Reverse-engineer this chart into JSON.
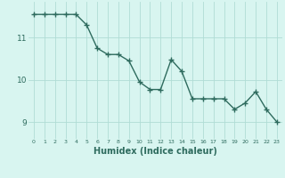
{
  "x": [
    0,
    1,
    2,
    3,
    4,
    5,
    6,
    7,
    8,
    9,
    10,
    11,
    12,
    13,
    14,
    15,
    16,
    17,
    18,
    19,
    20,
    21,
    22,
    23
  ],
  "y": [
    11.55,
    11.55,
    11.55,
    11.55,
    11.55,
    11.3,
    10.75,
    10.6,
    10.6,
    10.45,
    9.95,
    9.77,
    9.77,
    10.48,
    10.2,
    9.55,
    9.55,
    9.55,
    9.55,
    9.3,
    9.45,
    9.72,
    9.3,
    9.0
  ],
  "line_color": "#2e6b5e",
  "marker": "+",
  "marker_size": 4,
  "line_width": 1.0,
  "bg_color": "#d8f5f0",
  "grid_color": "#b0ddd5",
  "tick_color": "#2e6b5e",
  "xlabel": "Humidex (Indice chaleur)",
  "xlabel_fontsize": 7,
  "ytick_labels": [
    "9",
    "10",
    "11"
  ],
  "ytick_vals": [
    9,
    10,
    11
  ],
  "xtick_vals": [
    0,
    1,
    2,
    3,
    4,
    5,
    6,
    7,
    8,
    9,
    10,
    11,
    12,
    13,
    14,
    15,
    16,
    17,
    18,
    19,
    20,
    21,
    22,
    23
  ],
  "ylim": [
    8.6,
    11.85
  ],
  "xlim": [
    -0.5,
    23.5
  ]
}
